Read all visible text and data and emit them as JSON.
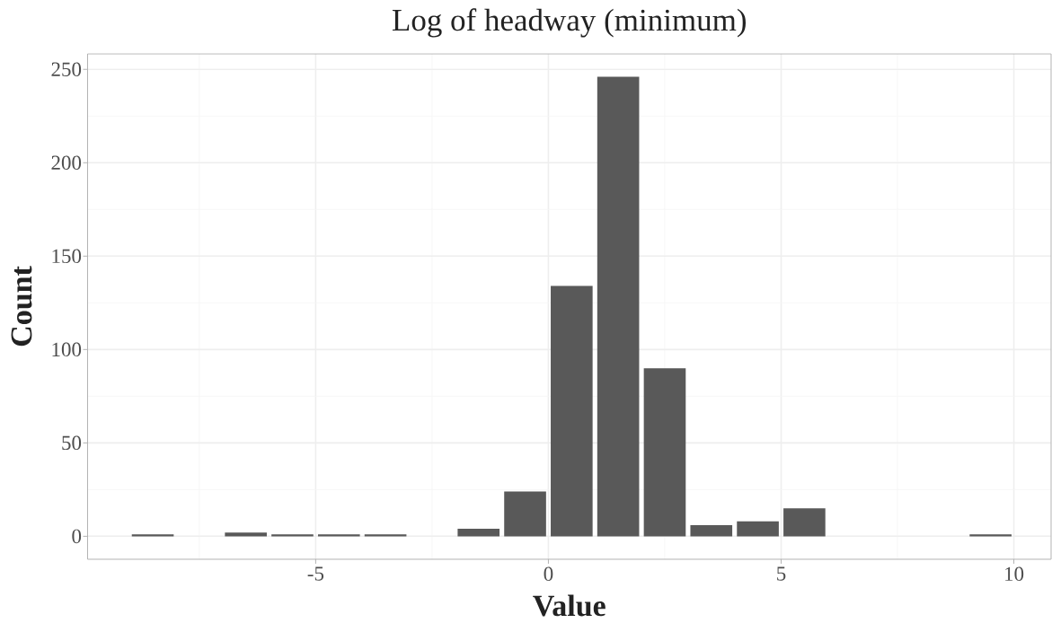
{
  "chart_data": {
    "type": "histogram",
    "title": "Log of headway (minimum)",
    "xlabel": "Value",
    "ylabel": "Count",
    "bins": [
      -9,
      -8,
      -7,
      -6,
      -5,
      -4,
      -3,
      -2,
      -1,
      0,
      1,
      2,
      3,
      4,
      5,
      6,
      7,
      8,
      9,
      10
    ],
    "values": [
      1,
      0,
      2,
      1,
      1,
      1,
      0,
      4,
      24,
      134,
      246,
      90,
      6,
      8,
      15,
      0,
      0,
      0,
      1
    ],
    "color": "#595959",
    "xlim": [
      -9.9,
      10.8
    ],
    "ylim": [
      -12.3,
      258.3
    ],
    "xticks": [
      -5,
      0,
      5,
      10
    ],
    "yticks": [
      0,
      50,
      100,
      150,
      200,
      250
    ],
    "grid": true
  }
}
